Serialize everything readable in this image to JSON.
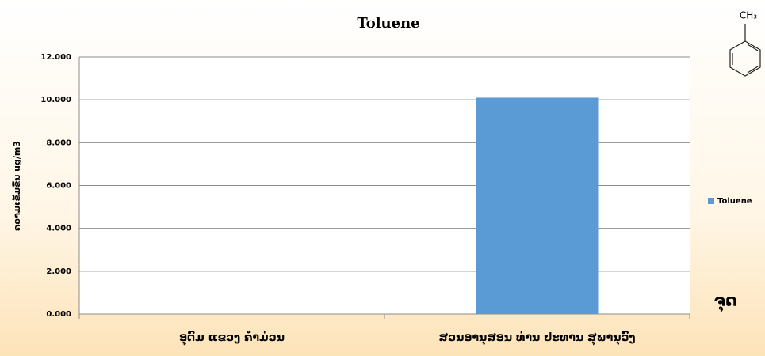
{
  "chart_data": {
    "type": "bar",
    "title": "Toluene",
    "categories": [
      "ອຸດົມ ແຂວງ ຄຳມ່ວນ",
      "ສວນອານຸສອນ ທ່ານ ປະທານ ສຸພານຸວົງ"
    ],
    "series": [
      {
        "name": "Toluene",
        "color": "#5b9bd5",
        "values": [
          0,
          10.1
        ]
      }
    ],
    "y_label": "ຄວາມເຂັ້ມຂົ້ນ ug/m3",
    "x_label": "ຈຸດ",
    "molecule_label": "CH₃",
    "ylim": [
      0,
      12
    ],
    "yticks": [
      {
        "value": 0,
        "label": "0.000"
      },
      {
        "value": 2,
        "label": "2.000"
      },
      {
        "value": 4,
        "label": "4.000"
      },
      {
        "value": 6,
        "label": "6.000"
      },
      {
        "value": 8,
        "label": "8.000"
      },
      {
        "value": 10,
        "label": "10.000"
      },
      {
        "value": 12,
        "label": "12.000"
      }
    ],
    "grid": true,
    "legend": "right"
  }
}
